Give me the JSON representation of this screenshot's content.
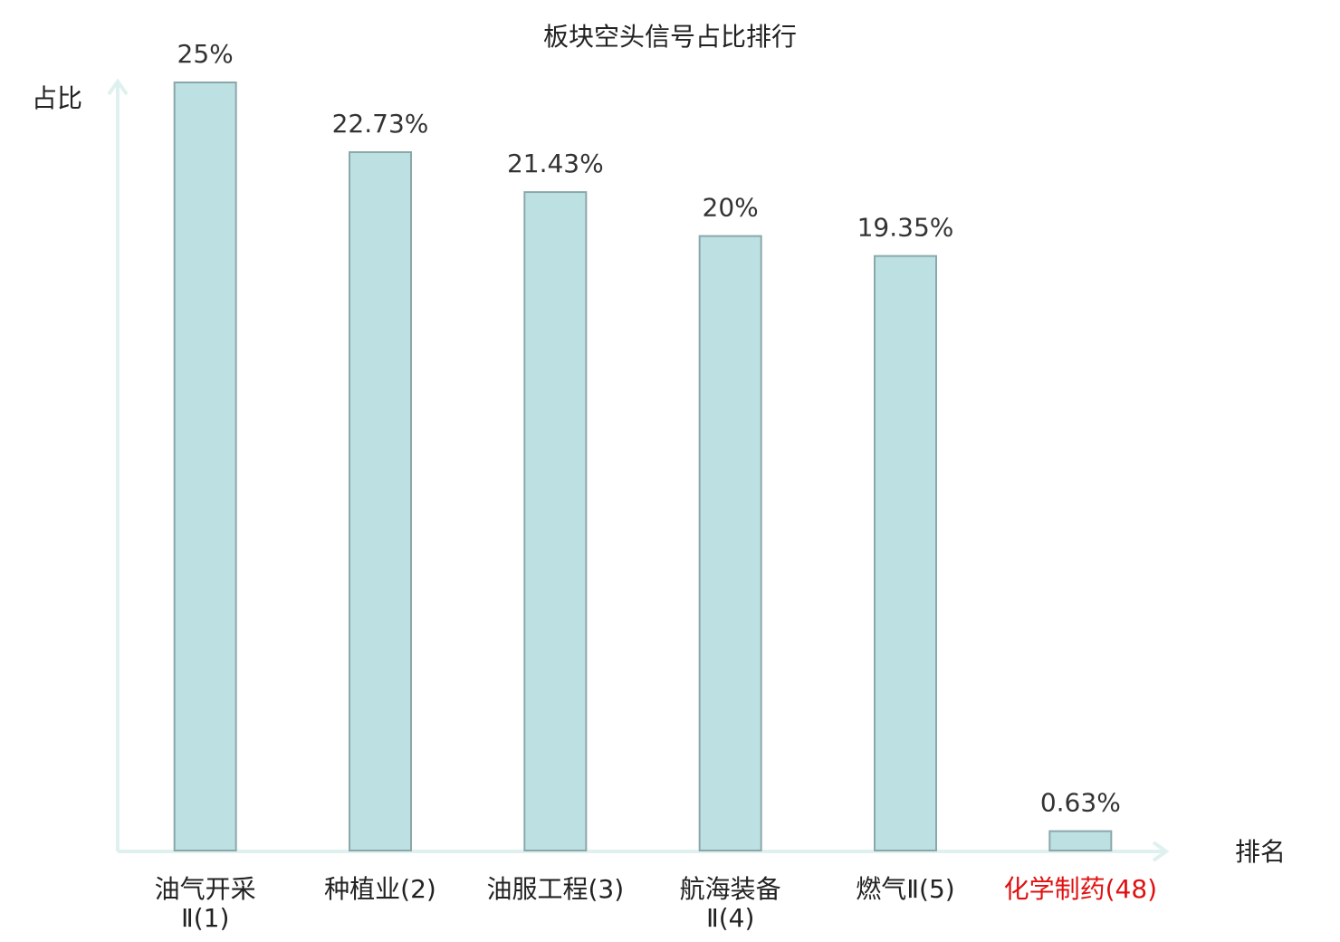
{
  "chart_data": {
    "type": "bar",
    "title": "板块空头信号占比排行",
    "y_label": "占比",
    "x_label": "排名",
    "categories": [
      [
        "油气开采",
        "Ⅱ(1)"
      ],
      [
        "种植业(2)"
      ],
      [
        "油服工程(3)"
      ],
      [
        "航海装备",
        "Ⅱ(4)"
      ],
      [
        "燃气Ⅱ(5)"
      ],
      [
        "化学制药(48)"
      ]
    ],
    "label_colors": [
      "#222222",
      "#222222",
      "#222222",
      "#222222",
      "#222222",
      "#e01010"
    ],
    "values": [
      25,
      22.73,
      21.43,
      20,
      19.35,
      0.63
    ],
    "value_labels": [
      "25%",
      "22.73%",
      "21.43%",
      "20%",
      "19.35%",
      "0.63%"
    ],
    "color": "#bde0e3",
    "ylim": [
      0,
      25
    ]
  }
}
